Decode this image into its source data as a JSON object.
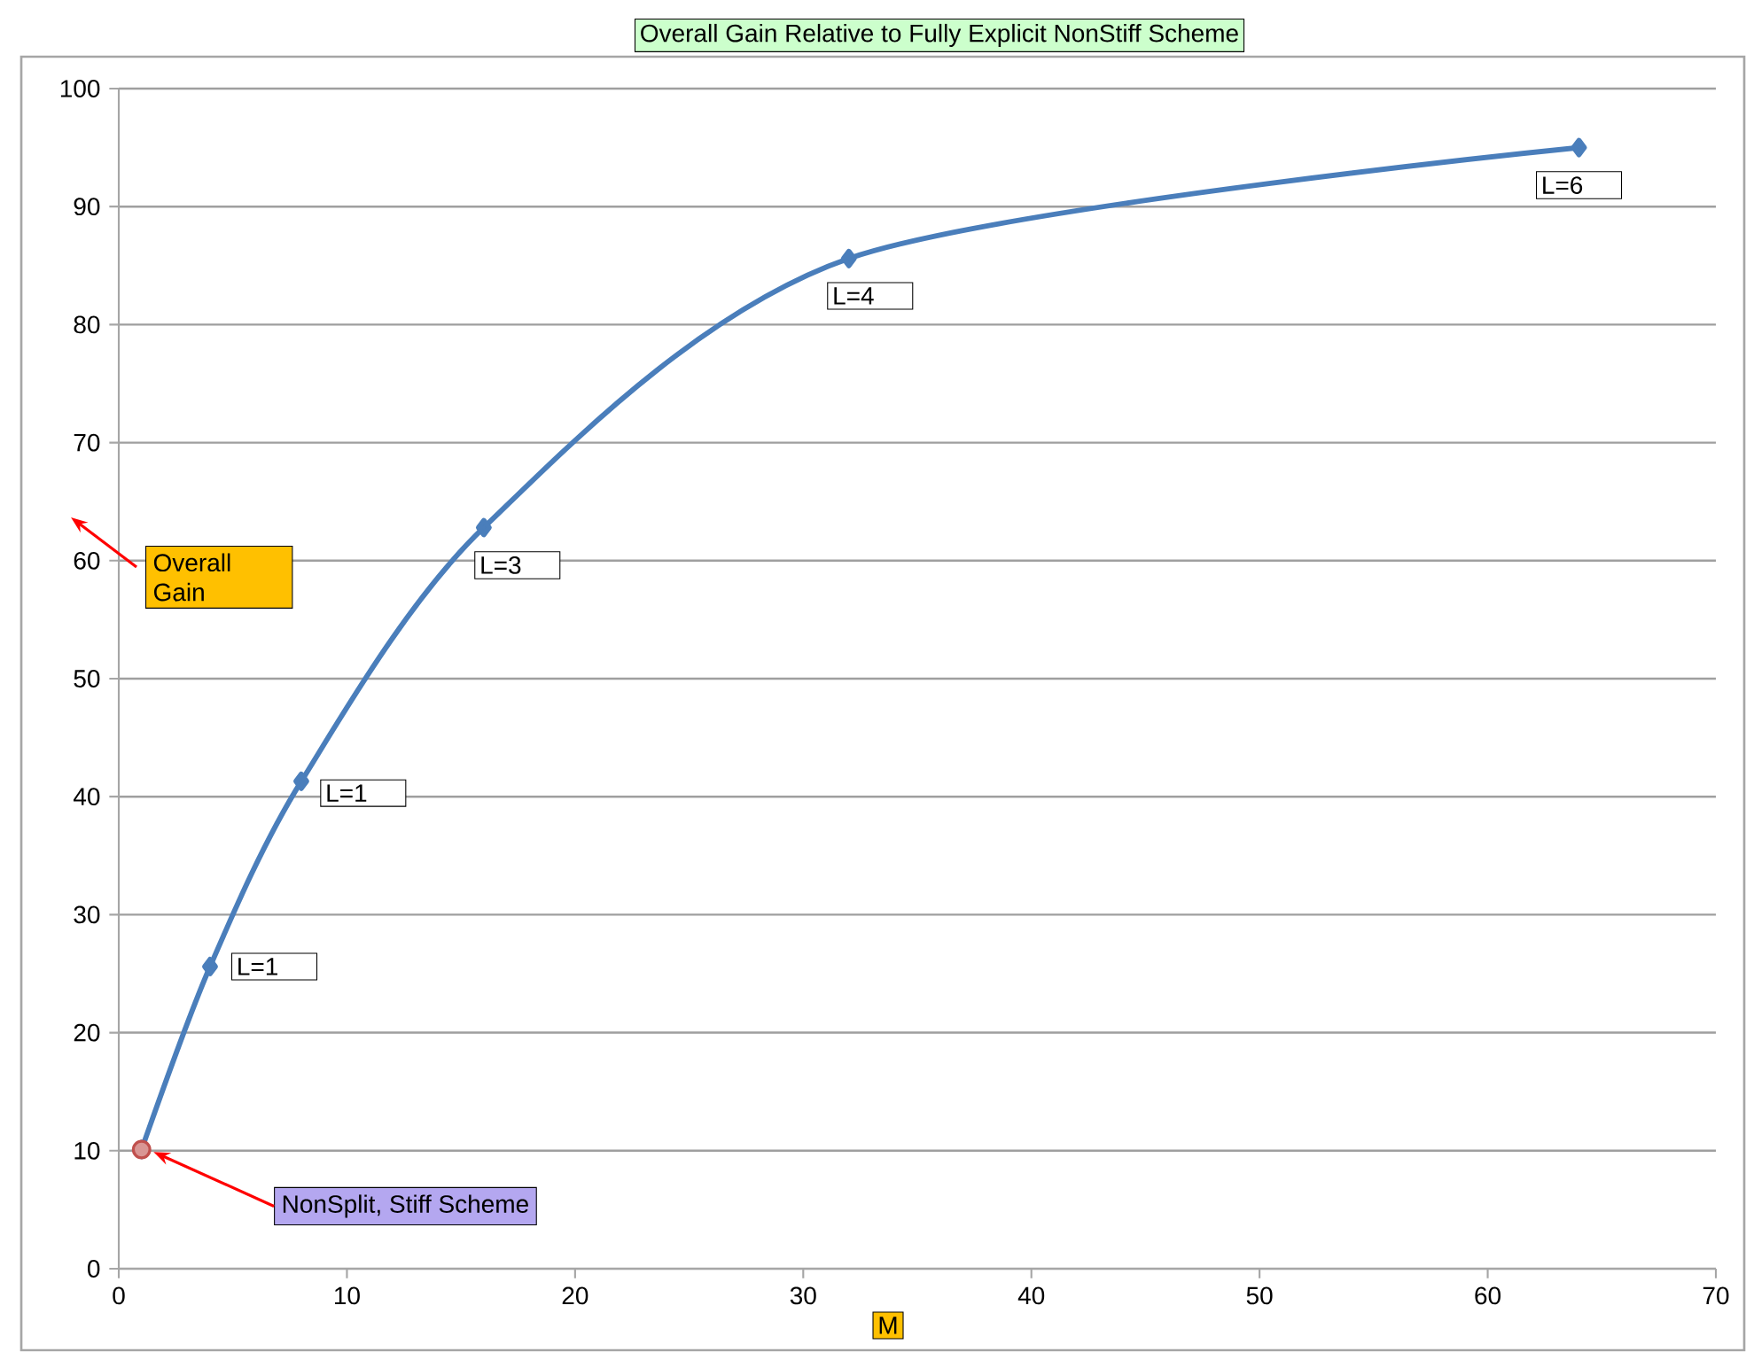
{
  "chart_data": {
    "type": "line",
    "title": "Overall Gain Relative to Fully Explicit NonStiff Scheme",
    "xlabel": "M",
    "ylabel": "Overall Gain",
    "series": [
      {
        "color": "#4a7ebb",
        "marker": "diamond",
        "x": [
          1,
          4,
          8,
          16,
          32,
          64
        ],
        "values": [
          10.1,
          25.6,
          41.3,
          62.8,
          85.6,
          95.0
        ]
      },
      {
        "type": "scatter",
        "color": "#c0504d",
        "marker": "circle",
        "x": [
          1
        ],
        "values": [
          10.1
        ]
      }
    ],
    "annotations": [
      {
        "text": "L=1",
        "x": 4,
        "y": 25.6
      },
      {
        "text": "L=1",
        "x": 8,
        "y": 41.3
      },
      {
        "text": "L=3",
        "x": 16,
        "y": 62.8
      },
      {
        "text": "L=4",
        "x": 32,
        "y": 85.6
      },
      {
        "text": "L=6",
        "x": 64,
        "y": 95.0
      },
      "NonSplit, Stiff Scheme"
    ],
    "xlim": [
      0,
      70
    ],
    "ylim": [
      0,
      100
    ],
    "xticks": [
      0,
      10,
      20,
      30,
      40,
      50,
      60,
      70
    ],
    "yticks": [
      0,
      10,
      20,
      30,
      40,
      50,
      60,
      70,
      80,
      90,
      100
    ],
    "grid": "y"
  }
}
